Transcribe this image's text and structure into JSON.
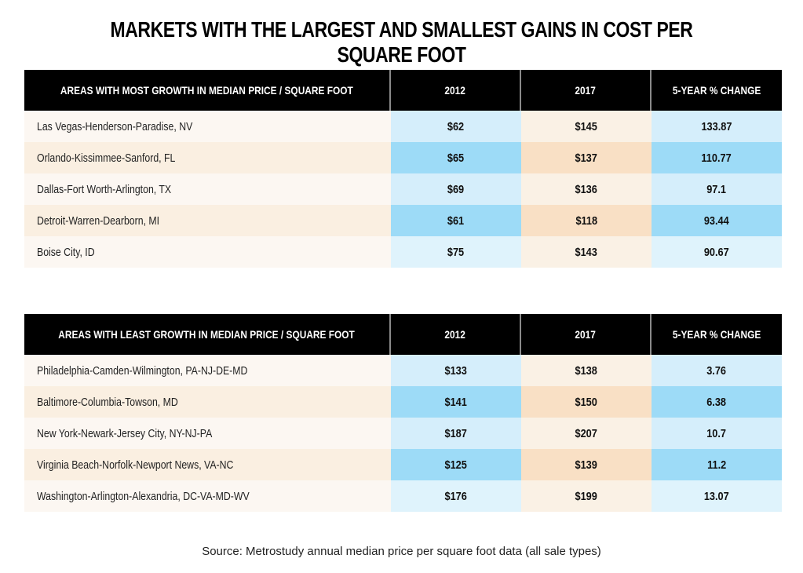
{
  "title": "MARKETS WITH THE LARGEST AND SMALLEST GAINS IN COST PER SQUARE FOOT",
  "colors": {
    "header_bg": "#000000",
    "label_odd": "#fcf7f2",
    "label_even": "#faefe1",
    "blue_light": "#d5eefb",
    "blue_dark": "#9ddbf7",
    "peach_light": "#faf1e5",
    "peach_dark": "#f9e0c5"
  },
  "tables": [
    {
      "headers": [
        "AREAS  WITH MOST GROWTH IN MEDIAN PRICE / SQUARE FOOT",
        "2012",
        "2017",
        "5-YEAR % CHANGE"
      ],
      "rows": [
        [
          "Las Vegas-Henderson-Paradise, NV",
          "$62",
          "$145",
          "133.87"
        ],
        [
          "Orlando-Kissimmee-Sanford, FL",
          "$65",
          "$137",
          "110.77"
        ],
        [
          "Dallas-Fort Worth-Arlington, TX",
          "$69",
          "$136",
          "97.1"
        ],
        [
          "Detroit-Warren-Dearborn, MI",
          "$61",
          "$118",
          "93.44"
        ],
        [
          "Boise City, ID",
          "$75",
          "$143",
          "90.67"
        ]
      ]
    },
    {
      "headers": [
        "AREAS  WITH LEAST GROWTH IN MEDIAN PRICE / SQUARE FOOT",
        "2012",
        "2017",
        "5-YEAR % CHANGE"
      ],
      "rows": [
        [
          "Philadelphia-Camden-Wilmington, PA-NJ-DE-MD",
          "$133",
          "$138",
          "3.76"
        ],
        [
          "Baltimore-Columbia-Towson, MD",
          "$141",
          "$150",
          "6.38"
        ],
        [
          "New York-Newark-Jersey City, NY-NJ-PA",
          "$187",
          "$207",
          "10.7"
        ],
        [
          "Virginia Beach-Norfolk-Newport News, VA-NC",
          "$125",
          "$139",
          "11.2"
        ],
        [
          "Washington-Arlington-Alexandria, DC-VA-MD-WV",
          "$176",
          "$199",
          "13.07"
        ]
      ]
    }
  ],
  "source": "Source: Metrostudy annual median price per square foot data (all sale types)"
}
